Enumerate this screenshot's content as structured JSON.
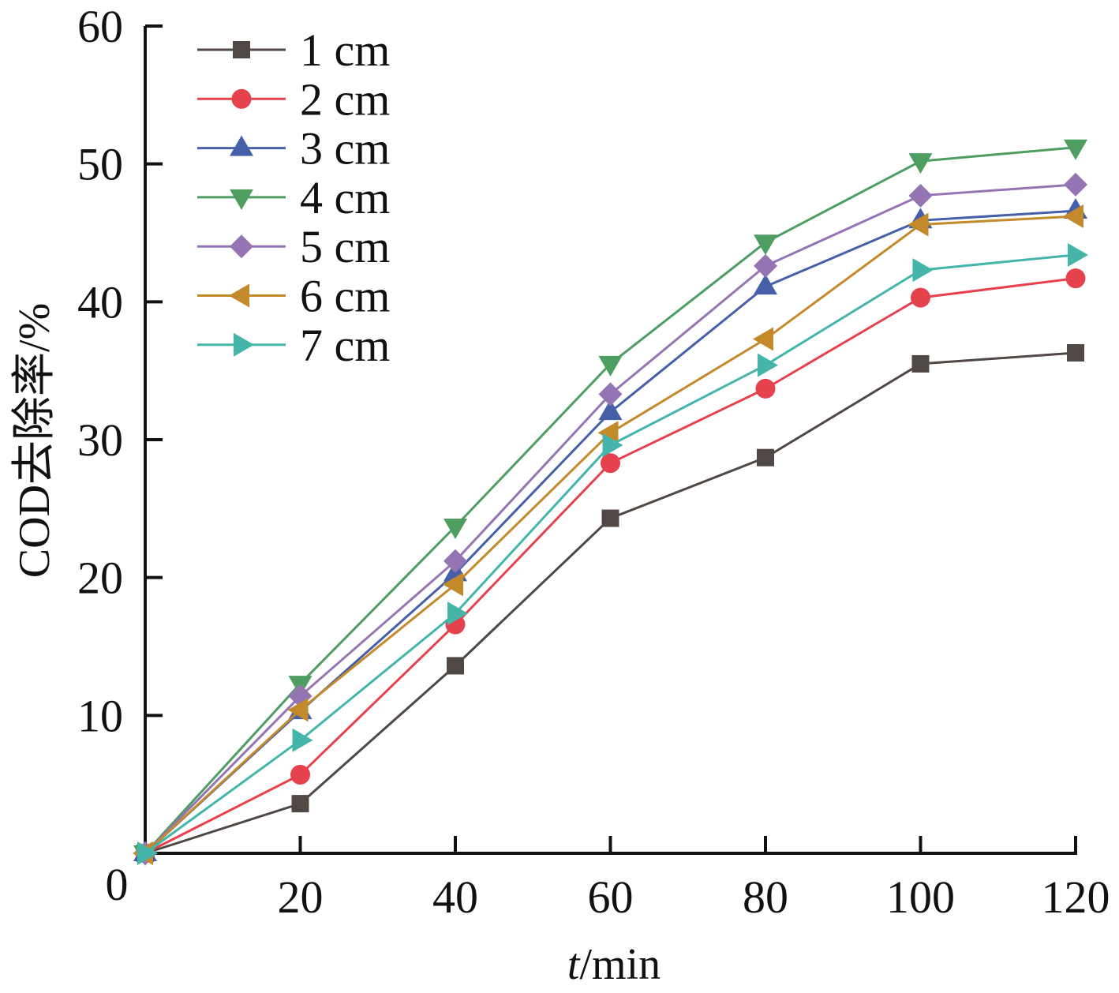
{
  "chart_data": {
    "type": "line",
    "title": "",
    "xlabel_italic": "t",
    "xlabel_rest": "/min",
    "xlabel": "t/min",
    "ylabel": "COD去除率/%",
    "xlim": [
      0,
      120
    ],
    "ylim": [
      0,
      60
    ],
    "xticks": [
      20,
      40,
      60,
      80,
      100,
      120
    ],
    "xtick_labels": [
      "20",
      "40",
      "60",
      "80",
      "100",
      "120"
    ],
    "yticks": [
      10,
      20,
      30,
      40,
      50,
      60
    ],
    "ytick_labels": [
      "10",
      "20",
      "30",
      "40",
      "50",
      "60"
    ],
    "origin_label": "0",
    "grid": false,
    "legend_position": "top-left",
    "x": [
      0,
      20,
      40,
      60,
      80,
      100,
      120
    ],
    "series": [
      {
        "name": "1 cm",
        "color": "#4f4845",
        "marker": "square",
        "values": [
          0,
          3.6,
          13.6,
          24.3,
          28.7,
          35.5,
          36.3
        ]
      },
      {
        "name": "2 cm",
        "color": "#e5424d",
        "marker": "circle",
        "values": [
          0,
          5.7,
          16.6,
          28.3,
          33.7,
          40.3,
          41.7
        ]
      },
      {
        "name": "3 cm",
        "color": "#4560a8",
        "marker": "triangle-up",
        "values": [
          0,
          10.3,
          20.3,
          32.0,
          41.1,
          45.9,
          46.6
        ]
      },
      {
        "name": "4 cm",
        "color": "#4e9e62",
        "marker": "triangle-down",
        "values": [
          0,
          12.3,
          23.7,
          35.5,
          44.3,
          50.2,
          51.2
        ]
      },
      {
        "name": "5 cm",
        "color": "#9574b4",
        "marker": "diamond",
        "values": [
          0,
          11.4,
          21.2,
          33.3,
          42.6,
          47.7,
          48.5
        ]
      },
      {
        "name": "6 cm",
        "color": "#c38a2c",
        "marker": "triangle-left",
        "values": [
          0,
          10.4,
          19.5,
          30.5,
          37.3,
          45.6,
          46.2
        ]
      },
      {
        "name": "7 cm",
        "color": "#45b5aa",
        "marker": "triangle-right",
        "values": [
          0,
          8.2,
          17.4,
          29.6,
          35.4,
          42.3,
          43.4
        ]
      }
    ]
  }
}
